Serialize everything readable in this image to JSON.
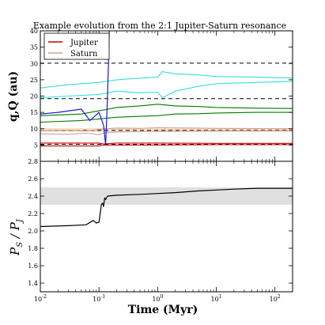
{
  "title": "Example evolution from the 2:1 Jupiter-Saturn resonance",
  "colors": {
    "jupiter": "#cc0000",
    "saturn": "#d2a090",
    "uranus": "#007a00",
    "neptune": "#33e0e0",
    "ejected": "#1a1ad8",
    "period_ratio": "#000000",
    "band_fill": "#e0e0e0",
    "orange_band_fill": "#f5e2c8",
    "ref_line": "#000000"
  },
  "chart_data": [
    {
      "type": "line",
      "panel": "top",
      "ylabel": "q,Q (au)",
      "xscale": "log",
      "xlim": [
        0.01,
        200
      ],
      "ylim": [
        0,
        40
      ],
      "yticks": [
        5,
        10,
        15,
        20,
        25,
        30,
        35,
        40
      ],
      "reference_lines_y": [
        5.2,
        9.5,
        19.2,
        30.1
      ],
      "shaded_band_y": [
        9.0,
        10.2
      ],
      "legend": {
        "position": "top-left",
        "entries": [
          "Jupiter",
          "Saturn"
        ]
      },
      "series": [
        {
          "name": "Jupiter",
          "x": [
            0.01,
            0.1,
            0.12,
            0.2,
            1,
            10,
            200
          ],
          "q": [
            4.7,
            4.7,
            5.0,
            5.0,
            5.0,
            5.1,
            5.1
          ],
          "Q": [
            5.6,
            5.6,
            5.3,
            5.6,
            5.6,
            5.5,
            5.5
          ]
        },
        {
          "x": [
            0.01,
            0.03,
            0.06,
            0.1,
            0.13,
            0.2,
            0.5,
            1,
            10,
            200
          ],
          "q": [
            8.4,
            8.3,
            8.6,
            8.2,
            8.8,
            9.0,
            9.1,
            9.2,
            9.3,
            9.3
          ],
          "Q": [
            9.4,
            9.6,
            9.3,
            9.8,
            10.0,
            10.2,
            10.1,
            10.3,
            10.1,
            10.0
          ]
        },
        {
          "x": [
            0.01,
            0.05,
            0.1,
            0.2,
            0.5,
            1,
            2,
            5,
            10,
            50,
            200
          ],
          "q": [
            12.0,
            12.5,
            13.0,
            13.5,
            13.8,
            14.0,
            14.5,
            14.6,
            14.8,
            15.0,
            15.0
          ],
          "Q": [
            14.0,
            14.5,
            15.5,
            16.5,
            17.0,
            17.5,
            17.0,
            16.8,
            16.5,
            16.3,
            16.2
          ]
        },
        {
          "x": [
            0.01,
            0.03,
            0.1,
            0.2,
            0.5,
            1,
            1.2,
            2,
            5,
            10,
            50,
            200
          ],
          "q": [
            19.5,
            20.0,
            20.5,
            21.5,
            21.0,
            21.2,
            19.5,
            21.5,
            23.0,
            23.8,
            24.2,
            24.5
          ],
          "Q": [
            22.5,
            23.5,
            24.2,
            25.0,
            25.5,
            25.8,
            27.5,
            26.8,
            26.5,
            26.0,
            25.8,
            25.5
          ]
        },
        {
          "x": [
            0.01,
            0.02,
            0.05,
            0.07,
            0.1,
            0.12,
            0.13,
            0.14,
            0.15
          ],
          "y": [
            14.5,
            15.0,
            16.0,
            12.5,
            15.0,
            11.0,
            5.0,
            20.0,
            40.0
          ]
        }
      ]
    },
    {
      "type": "line",
      "panel": "bottom",
      "xlabel": "Time (Myr)",
      "ylabel": "P_S / P_J",
      "xscale": "log",
      "xlim": [
        0.01,
        200
      ],
      "xticks": [
        0.01,
        0.1,
        1,
        10,
        100
      ],
      "xtick_labels": [
        "10",
        "10",
        "10",
        "10",
        "10"
      ],
      "xtick_exponents": [
        "-2",
        "-1",
        "0",
        "1",
        "2"
      ],
      "ylim": [
        1.3,
        2.8
      ],
      "yticks": [
        1.4,
        1.6,
        1.8,
        2.0,
        2.2,
        2.4,
        2.6,
        2.8
      ],
      "shaded_band_y": [
        2.3,
        2.5
      ],
      "series": [
        {
          "x": [
            0.01,
            0.03,
            0.06,
            0.08,
            0.09,
            0.1,
            0.11,
            0.115,
            0.12,
            0.125,
            0.13,
            0.14,
            0.2,
            0.5,
            1,
            2,
            5,
            10,
            20,
            50,
            100,
            200
          ],
          "y": [
            2.05,
            2.06,
            2.07,
            2.12,
            2.09,
            2.1,
            2.3,
            2.32,
            2.28,
            2.38,
            2.36,
            2.4,
            2.41,
            2.42,
            2.43,
            2.44,
            2.46,
            2.47,
            2.48,
            2.49,
            2.49,
            2.49
          ]
        }
      ]
    }
  ],
  "ticks_top": {
    "y": [
      "5",
      "10",
      "15",
      "20",
      "25",
      "30",
      "35",
      "40"
    ]
  },
  "ticks_bottom": {
    "y": [
      "1.4",
      "1.6",
      "1.8",
      "2.0",
      "2.2",
      "2.4",
      "2.6",
      "2.8"
    ]
  }
}
